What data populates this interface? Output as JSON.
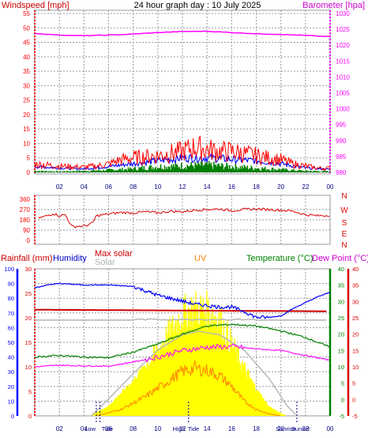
{
  "colors": {
    "wind": "#ff0000",
    "wind_avg": "#0000ff",
    "wind_low": "#008000",
    "baro": "#ff00ff",
    "rain": "#0000ff",
    "humidity": "#0000ff",
    "max_solar": "#cc0000",
    "solar": "#ffff00",
    "uv": "#ff8000",
    "temp": "#008000",
    "dew": "#ff00ff",
    "grid": "#9a9aa0",
    "direction": "#dd0000"
  },
  "chart_data": [
    {
      "type": "line",
      "title": "24 hour graph day : 10 July 2025",
      "left_axis_label": "Windspeed [mph]",
      "right_axis_label": "Barometer [hpa]",
      "left_ticks": [
        "0",
        "5",
        "10",
        "15",
        "20",
        "25",
        "30",
        "35",
        "40",
        "45",
        "50",
        "55"
      ],
      "right_ticks": [
        "980",
        "985",
        "990",
        "995",
        "1000",
        "1005",
        "1010",
        "1015",
        "1020",
        "1025",
        "1030"
      ],
      "x_ticks": [
        "02",
        "04",
        "06",
        "08",
        "10",
        "12",
        "14",
        "16",
        "18",
        "20",
        "22",
        "00"
      ],
      "ylim_left": [
        0,
        55
      ],
      "ylim_right": [
        980,
        1030
      ],
      "barometer_hpa": [
        [
          0,
          1023.7
        ],
        [
          2,
          1023.2
        ],
        [
          4,
          1023
        ],
        [
          6,
          1023.2
        ],
        [
          8,
          1023.5
        ],
        [
          10,
          1024
        ],
        [
          12,
          1024.3
        ],
        [
          14,
          1024.4
        ],
        [
          16,
          1024
        ],
        [
          18,
          1023.6
        ],
        [
          20,
          1023.4
        ],
        [
          22,
          1023.1
        ],
        [
          24,
          1022.7
        ]
      ],
      "gust_mph_envelope": [
        [
          0,
          4
        ],
        [
          2,
          3
        ],
        [
          4,
          2.5
        ],
        [
          5,
          3
        ],
        [
          6,
          4
        ],
        [
          7,
          6
        ],
        [
          8,
          7
        ],
        [
          9,
          7.5
        ],
        [
          10,
          8
        ],
        [
          11,
          9
        ],
        [
          12,
          10
        ],
        [
          13,
          12
        ],
        [
          14,
          11
        ],
        [
          15,
          10
        ],
        [
          16,
          10
        ],
        [
          17,
          9
        ],
        [
          18,
          8
        ],
        [
          19,
          7
        ],
        [
          20,
          6
        ],
        [
          21,
          4
        ],
        [
          22,
          3
        ],
        [
          23,
          2
        ],
        [
          24,
          2
        ]
      ],
      "avg_mph_envelope": [
        [
          0,
          2
        ],
        [
          2,
          1.5
        ],
        [
          4,
          1.2
        ],
        [
          6,
          2
        ],
        [
          8,
          3
        ],
        [
          10,
          4
        ],
        [
          12,
          5
        ],
        [
          14,
          5
        ],
        [
          16,
          4.5
        ],
        [
          18,
          4
        ],
        [
          20,
          3
        ],
        [
          22,
          1.5
        ],
        [
          24,
          1
        ]
      ],
      "low_mph_envelope": [
        [
          0,
          0.5
        ],
        [
          2,
          0.3
        ],
        [
          4,
          0.5
        ],
        [
          6,
          0.8
        ],
        [
          8,
          1.2
        ],
        [
          10,
          2
        ],
        [
          12,
          2.3
        ],
        [
          14,
          2.5
        ],
        [
          16,
          2
        ],
        [
          18,
          1.5
        ],
        [
          20,
          1
        ],
        [
          22,
          0.5
        ],
        [
          24,
          0.3
        ]
      ]
    },
    {
      "type": "line",
      "left_ticks": [
        "360",
        "270",
        "180",
        "90",
        "0"
      ],
      "direction_letters": [
        "N",
        "W",
        "S",
        "E",
        "N"
      ],
      "ylim": [
        0,
        360
      ],
      "direction_deg": [
        [
          0.3,
          195
        ],
        [
          1,
          215
        ],
        [
          1.5,
          235
        ],
        [
          2,
          215
        ],
        [
          2.5,
          225
        ],
        [
          3,
          120
        ],
        [
          4,
          125
        ],
        [
          4.7,
          150
        ],
        [
          5,
          215
        ],
        [
          6,
          230
        ],
        [
          7,
          245
        ],
        [
          8,
          240
        ],
        [
          9,
          250
        ],
        [
          10,
          240
        ],
        [
          11,
          255
        ],
        [
          12,
          250
        ],
        [
          13,
          265
        ],
        [
          14,
          270
        ],
        [
          15,
          275
        ],
        [
          16,
          260
        ],
        [
          17,
          270
        ],
        [
          18,
          275
        ],
        [
          19,
          270
        ],
        [
          20,
          265
        ],
        [
          21,
          255
        ],
        [
          22,
          225
        ],
        [
          23,
          215
        ],
        [
          24,
          220
        ]
      ]
    },
    {
      "type": "line",
      "left_labels": [
        "Rainfall (mm)",
        "Humidity"
      ],
      "center_labels": [
        "Max solar",
        "Solar",
        "UV"
      ],
      "right_labels": [
        "Temperature (°C)",
        "Dew Point (°C)"
      ],
      "humidity_ticks": [
        "0",
        "10",
        "20",
        "30",
        "40",
        "50",
        "60",
        "70",
        "80",
        "90",
        "100"
      ],
      "rain_ticks": [
        "0",
        "5",
        "10",
        "15",
        "20",
        "25",
        "30"
      ],
      "temp_ticks": [
        "-5",
        "0",
        "5",
        "10",
        "15",
        "20",
        "25",
        "30",
        "35",
        "40"
      ],
      "x_ticks": [
        "02",
        "04",
        "06",
        "08",
        "10",
        "12",
        "14",
        "16",
        "18",
        "20",
        "22",
        "00"
      ],
      "x_markers": [
        "Low",
        "Tide",
        "High",
        "Tide",
        "Sunrise",
        "Sunset"
      ],
      "humidity_pct": [
        [
          0,
          87
        ],
        [
          1,
          89
        ],
        [
          2,
          90
        ],
        [
          4,
          89
        ],
        [
          6,
          89
        ],
        [
          8,
          88
        ],
        [
          9,
          85
        ],
        [
          10,
          82
        ],
        [
          11,
          80
        ],
        [
          12,
          78
        ],
        [
          13,
          76
        ],
        [
          14,
          75
        ],
        [
          15,
          74
        ],
        [
          16,
          74
        ],
        [
          17,
          71
        ],
        [
          18,
          67
        ],
        [
          19,
          67
        ],
        [
          20,
          68
        ],
        [
          21,
          73
        ],
        [
          22,
          77
        ],
        [
          23,
          81
        ],
        [
          24,
          84
        ]
      ],
      "temperature_c": [
        [
          0,
          13
        ],
        [
          2,
          13.5
        ],
        [
          4,
          13
        ],
        [
          6,
          12.8
        ],
        [
          8,
          14.5
        ],
        [
          10,
          17
        ],
        [
          12,
          20
        ],
        [
          14,
          22.5
        ],
        [
          16,
          23
        ],
        [
          18,
          22.5
        ],
        [
          20,
          21
        ],
        [
          22,
          19
        ],
        [
          24,
          16
        ]
      ],
      "dewpoint_c": [
        [
          0,
          10
        ],
        [
          2,
          10.5
        ],
        [
          4,
          10.3
        ],
        [
          6,
          10.2
        ],
        [
          8,
          11.5
        ],
        [
          10,
          13
        ],
        [
          12,
          15
        ],
        [
          14,
          16
        ],
        [
          16,
          16.2
        ],
        [
          18,
          15.5
        ],
        [
          20,
          15
        ],
        [
          22,
          13.5
        ],
        [
          24,
          12
        ]
      ],
      "max_solar_scale": [
        [
          0,
          27
        ],
        [
          24,
          27
        ]
      ],
      "solar_scale": [
        [
          0,
          26.5
        ],
        [
          24,
          26.5
        ]
      ],
      "solar_radiation_rel": [
        [
          4.5,
          0
        ],
        [
          6,
          0.08
        ],
        [
          8,
          0.28
        ],
        [
          10,
          0.55
        ],
        [
          11,
          0.7
        ],
        [
          12,
          0.85
        ],
        [
          13,
          0.9
        ],
        [
          14,
          0.88
        ],
        [
          15,
          0.82
        ],
        [
          16,
          0.6
        ],
        [
          17,
          0.4
        ],
        [
          18,
          0.22
        ],
        [
          19,
          0.08
        ],
        [
          20,
          0.02
        ],
        [
          20.5,
          0
        ]
      ],
      "uv_rel": [
        [
          5,
          0
        ],
        [
          7,
          0.06
        ],
        [
          9,
          0.18
        ],
        [
          11,
          0.34
        ],
        [
          12,
          0.42
        ],
        [
          13,
          0.45
        ],
        [
          14,
          0.43
        ],
        [
          15,
          0.38
        ],
        [
          16,
          0.28
        ],
        [
          17,
          0.14
        ],
        [
          18,
          0.06
        ],
        [
          19,
          0.02
        ],
        [
          20,
          0
        ]
      ],
      "max_solar_curve_rel": [
        [
          4.6,
          0
        ],
        [
          6,
          0.2
        ],
        [
          8,
          0.5
        ],
        [
          10,
          0.78
        ],
        [
          12,
          0.96
        ],
        [
          13.3,
          1.0
        ],
        [
          15,
          0.96
        ],
        [
          17,
          0.78
        ],
        [
          19,
          0.45
        ],
        [
          20.5,
          0.12
        ],
        [
          21.3,
          0
        ]
      ]
    }
  ]
}
